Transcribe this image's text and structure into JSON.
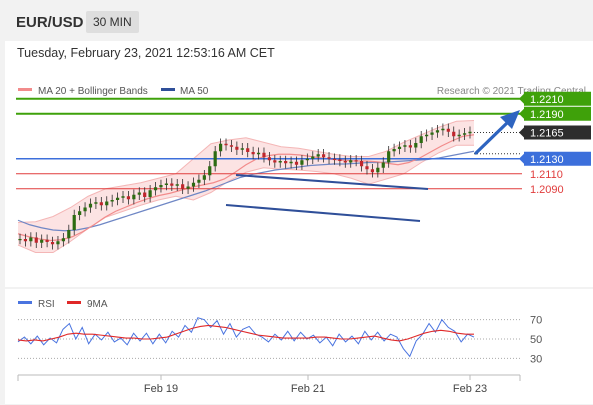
{
  "header": {
    "pair": "EUR/USD",
    "timeframe": "30 MIN"
  },
  "datetime": "Tuesday, February 23, 2021 12:53:16 AM CET",
  "legend": {
    "ma20": "MA 20 + Bollinger Bands",
    "ma50": "MA 50",
    "credit": "Research © 2021 Trading Central"
  },
  "rsi_legend": {
    "rsi": "RSI",
    "ma9": "9MA"
  },
  "colors": {
    "green": "#3fa10a",
    "blue": "#3c6fdb",
    "red": "#e03c3c",
    "dark": "#2d2d2d",
    "bands": "#fbdcdc",
    "ma20": "#f28b8b",
    "ma50": "#6f87c5",
    "rsi": "#4a74e0",
    "rsi_ma": "#e02828",
    "arrow": "#2e64c0"
  },
  "chart_data": [
    {
      "type": "line",
      "title": "",
      "instrument": "EUR/USD",
      "timeframe": "30 MIN",
      "ylim": [
        1.1975,
        1.2235
      ],
      "x_ticks": [
        "Feb 19",
        "Feb 21",
        "Feb 23"
      ],
      "levels": [
        {
          "value": 1.221,
          "label": "1.2210",
          "role": "resistance"
        },
        {
          "value": 1.219,
          "label": "1.2190",
          "role": "resistance"
        },
        {
          "value": 1.2165,
          "label": "1.2165",
          "role": "last price"
        },
        {
          "value": 1.213,
          "label": "1.2130",
          "role": "pivot"
        },
        {
          "value": 1.211,
          "label": "1.2110",
          "role": "support"
        },
        {
          "value": 1.209,
          "label": "1.2090",
          "role": "support"
        }
      ],
      "series": [
        {
          "name": "EUR/USD",
          "values": [
            1.2023,
            1.202,
            1.2025,
            1.2018,
            1.2022,
            1.2019,
            1.2016,
            1.202,
            1.2024,
            1.2035,
            1.2055,
            1.206,
            1.2065,
            1.207,
            1.2072,
            1.2068,
            1.2073,
            1.2075,
            1.2078,
            1.208,
            1.2076,
            1.2082,
            1.2085,
            1.2079,
            1.2088,
            1.2092,
            1.2095,
            1.2097,
            1.2094,
            1.2096,
            1.209,
            1.2093,
            1.2098,
            1.2102,
            1.2108,
            1.212,
            1.214,
            1.215,
            1.2148,
            1.2146,
            1.2142,
            1.2144,
            1.2139,
            1.2136,
            1.2138,
            1.2132,
            1.2128,
            1.2125,
            1.2127,
            1.2124,
            1.2126,
            1.2122,
            1.2128,
            1.213,
            1.2133,
            1.2136,
            1.2132,
            1.213,
            1.2129,
            1.2127,
            1.2125,
            1.2128,
            1.2127,
            1.212,
            1.2116,
            1.2112,
            1.2118,
            1.2125,
            1.214,
            1.2143,
            1.2146,
            1.2148,
            1.2145,
            1.2151,
            1.216,
            1.2162,
            1.2165,
            1.2168,
            1.217,
            1.2166,
            1.216,
            1.2162,
            1.2164,
            1.2166
          ]
        },
        {
          "name": "MA 20",
          "values": [
            1.203,
            1.2026,
            1.2023,
            1.2021,
            1.2022,
            1.2026,
            1.2033,
            1.2042,
            1.2052,
            1.206,
            1.2066,
            1.2072,
            1.2077,
            1.2081,
            1.2084,
            1.2088,
            1.2092,
            1.2095,
            1.2098,
            1.2103,
            1.2112,
            1.2122,
            1.213,
            1.2134,
            1.2136,
            1.2136,
            1.2135,
            1.2133,
            1.2131,
            1.2129,
            1.2128,
            1.2127,
            1.2127,
            1.2126,
            1.2124,
            1.2122,
            1.2125,
            1.2131,
            1.2139,
            1.2147,
            1.2154,
            1.216,
            1.2162
          ]
        },
        {
          "name": "MA 50",
          "values": [
            1.2048,
            1.2042,
            1.2038,
            1.2035,
            1.2034,
            1.2035,
            1.2038,
            1.2042,
            1.2047,
            1.2052,
            1.2057,
            1.2062,
            1.2067,
            1.2072,
            1.2077,
            1.2082,
            1.2087,
            1.2093,
            1.2099,
            1.2105,
            1.2109,
            1.2112,
            1.2115,
            1.2117,
            1.2119,
            1.2121,
            1.2122,
            1.2123,
            1.2123,
            1.2124,
            1.2125,
            1.2125,
            1.2126,
            1.2127,
            1.2128,
            1.2129,
            1.2131,
            1.2134,
            1.2137,
            1.214
          ]
        },
        {
          "name": "Bollinger upper",
          "values": [
            1.2045,
            1.2046,
            1.2053,
            1.2065,
            1.208,
            1.209,
            1.2094,
            1.2098,
            1.2104,
            1.211,
            1.213,
            1.215,
            1.2155,
            1.2158,
            1.2152,
            1.2146,
            1.2144,
            1.214,
            1.2136,
            1.2133,
            1.2133,
            1.214,
            1.2152,
            1.2162,
            1.2172,
            1.218,
            1.2181
          ]
        },
        {
          "name": "Bollinger lower",
          "values": [
            1.2015,
            1.2005,
            1.2005,
            1.202,
            1.2037,
            1.2052,
            1.206,
            1.2068,
            1.2075,
            1.208,
            1.2075,
            1.2085,
            1.21,
            1.2112,
            1.2118,
            1.2116,
            1.2115,
            1.2113,
            1.211,
            1.2104,
            1.2096,
            1.2103,
            1.211,
            1.2125,
            1.2138,
            1.2148,
            1.2148
          ]
        }
      ]
    },
    {
      "type": "line",
      "title": "",
      "ylim": [
        20,
        80
      ],
      "y_ticks": [
        70,
        50,
        30
      ],
      "series": [
        {
          "name": "RSI",
          "values": [
            47,
            52,
            45,
            53,
            44,
            51,
            46,
            60,
            66,
            50,
            62,
            45,
            55,
            49,
            57,
            47,
            51,
            44,
            56,
            48,
            56,
            45,
            55,
            46,
            58,
            52,
            64,
            57,
            72,
            70,
            62,
            69,
            55,
            66,
            52,
            60,
            63,
            55,
            52,
            47,
            55,
            49,
            58,
            48,
            57,
            50,
            54,
            46,
            52,
            43,
            55,
            47,
            53,
            45,
            58,
            49,
            57,
            48,
            55,
            52,
            40,
            32,
            48,
            55,
            66,
            57,
            70,
            62,
            58,
            47,
            55,
            52
          ]
        },
        {
          "name": "9MA",
          "values": [
            49,
            48,
            49,
            48,
            50,
            52,
            55,
            56,
            55,
            55,
            54,
            53,
            52,
            51,
            51,
            50,
            50,
            51,
            52,
            55,
            58,
            61,
            63,
            64,
            63,
            62,
            60,
            58,
            56,
            54,
            53,
            52,
            51,
            51,
            51,
            51,
            52,
            52,
            51,
            50,
            50,
            51,
            52,
            53,
            51,
            49,
            48,
            50,
            53,
            56,
            58,
            59,
            58,
            56,
            55,
            55
          ]
        }
      ]
    }
  ]
}
